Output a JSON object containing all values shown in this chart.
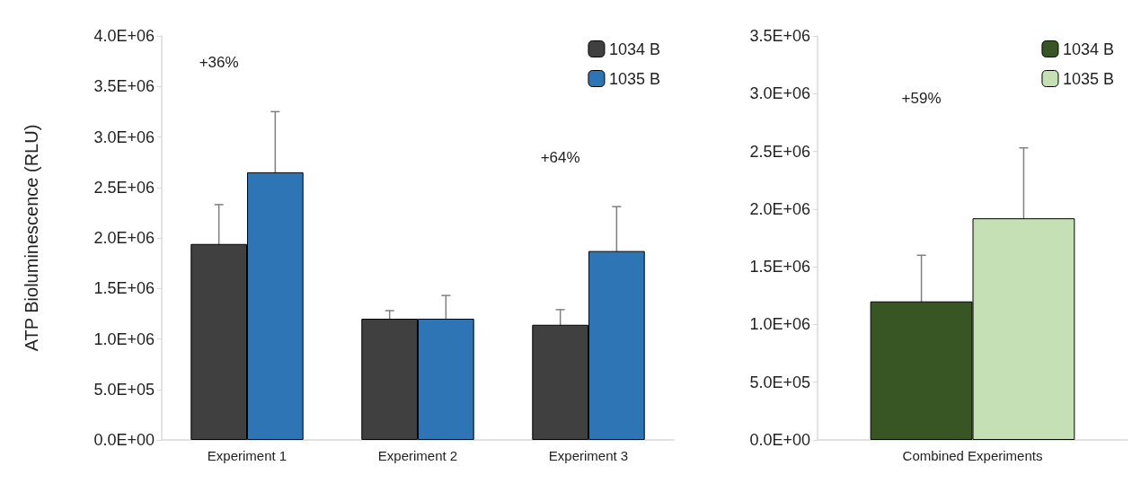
{
  "chart_data": [
    {
      "type": "bar",
      "ylabel": "ATP Bioluminescence (RLU)",
      "categories": [
        "Experiment 1",
        "Experiment 2",
        "Experiment 3"
      ],
      "legend": "top right",
      "ylim": [
        0,
        4000000
      ],
      "yticks": [
        {
          "value": 0,
          "label": "0.0E+00"
        },
        {
          "value": 500000,
          "label": "5.0E+05"
        },
        {
          "value": 1000000,
          "label": "1.0E+06"
        },
        {
          "value": 1500000,
          "label": "1.5E+06"
        },
        {
          "value": 2000000,
          "label": "2.0E+06"
        },
        {
          "value": 2500000,
          "label": "2.5E+06"
        },
        {
          "value": 3000000,
          "label": "3.0E+06"
        },
        {
          "value": 3500000,
          "label": "3.5E+06"
        },
        {
          "value": 4000000,
          "label": "4.0E+06"
        }
      ],
      "series": [
        {
          "name": "1034 B",
          "color": "#404040",
          "values": [
            1940000,
            1200000,
            1140000
          ],
          "errors": [
            390000,
            80000,
            150000
          ]
        },
        {
          "name": "1035 B",
          "color": "#2e75b6",
          "values": [
            2650000,
            1200000,
            1870000
          ],
          "errors": [
            600000,
            230000,
            440000
          ]
        }
      ],
      "annotations": [
        "+36%",
        "+64%"
      ]
    },
    {
      "type": "bar",
      "categories": [
        "Combined Experiments"
      ],
      "legend": "top right",
      "ylim": [
        0,
        3500000
      ],
      "yticks": [
        {
          "value": 0,
          "label": "0.0E+00"
        },
        {
          "value": 500000,
          "label": "5.0E+05"
        },
        {
          "value": 1000000,
          "label": "1.0E+06"
        },
        {
          "value": 1500000,
          "label": "1.5E+06"
        },
        {
          "value": 2000000,
          "label": "2.0E+06"
        },
        {
          "value": 2500000,
          "label": "2.5E+06"
        },
        {
          "value": 3000000,
          "label": "3.0E+06"
        },
        {
          "value": 3500000,
          "label": "3.5E+06"
        }
      ],
      "series": [
        {
          "name": "1034 B",
          "color": "#375623",
          "values": [
            1200000
          ],
          "errors": [
            400000
          ]
        },
        {
          "name": "1035 B",
          "color": "#c5e0b4",
          "values": [
            1920000
          ],
          "errors": [
            610000
          ]
        }
      ],
      "annotations": [
        "+59%"
      ]
    }
  ]
}
